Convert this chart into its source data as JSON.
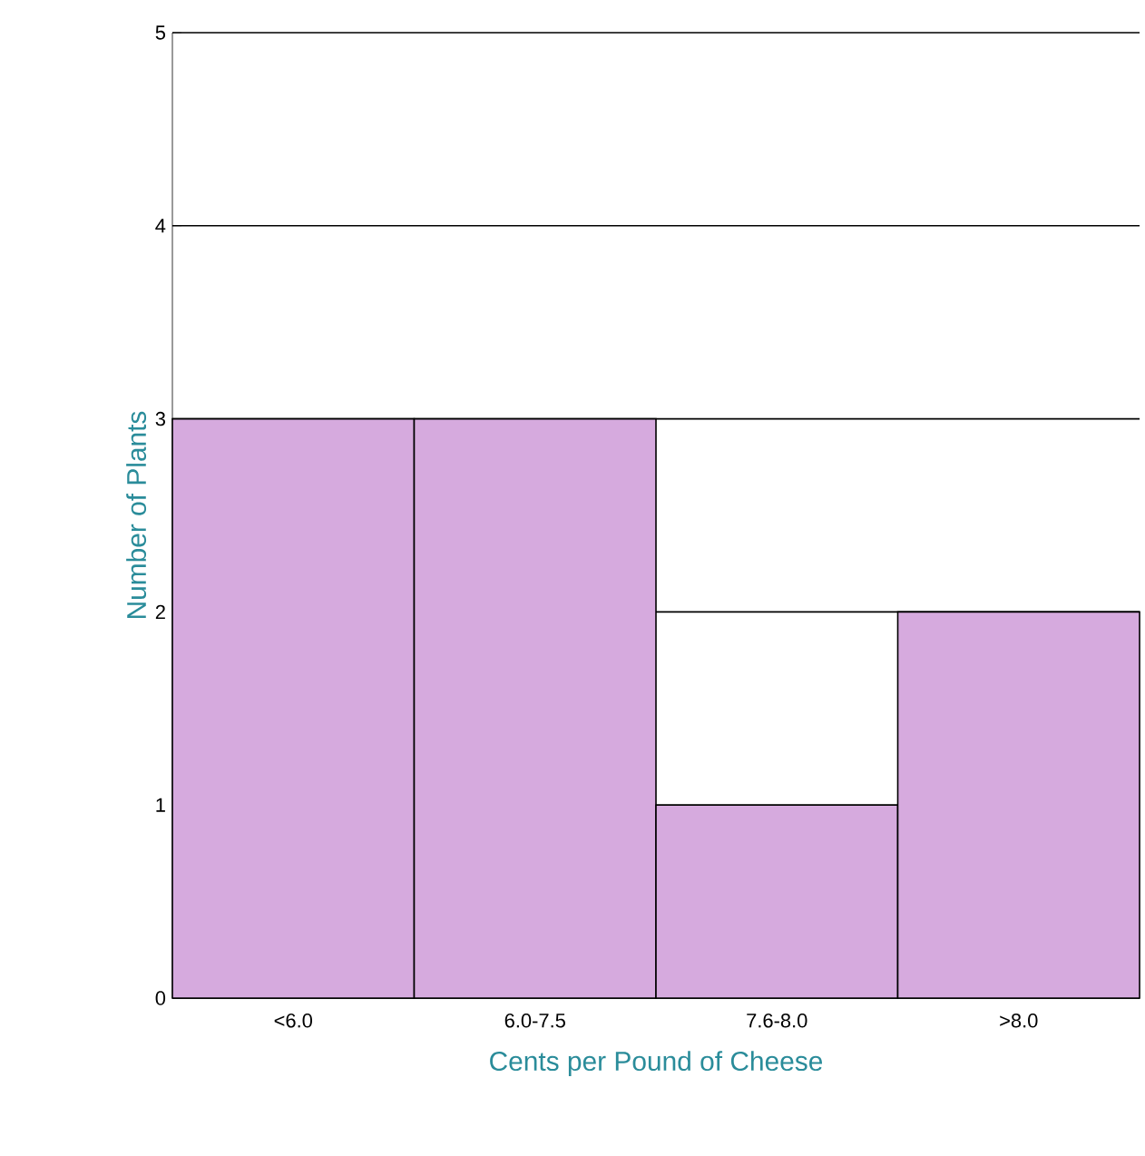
{
  "chart_data": {
    "type": "bar",
    "xlabel": "Cents per Pound of Cheese",
    "ylabel": "Number of Plants",
    "categories": [
      "<6.0",
      "6.0-7.5",
      "7.6-8.0",
      ">8.0"
    ],
    "values": [
      3,
      3,
      1,
      2
    ],
    "color": "#d6aade",
    "ylim": [
      0,
      5
    ],
    "yticks": [
      0,
      1,
      2,
      3,
      4,
      5
    ],
    "grid": "y"
  }
}
